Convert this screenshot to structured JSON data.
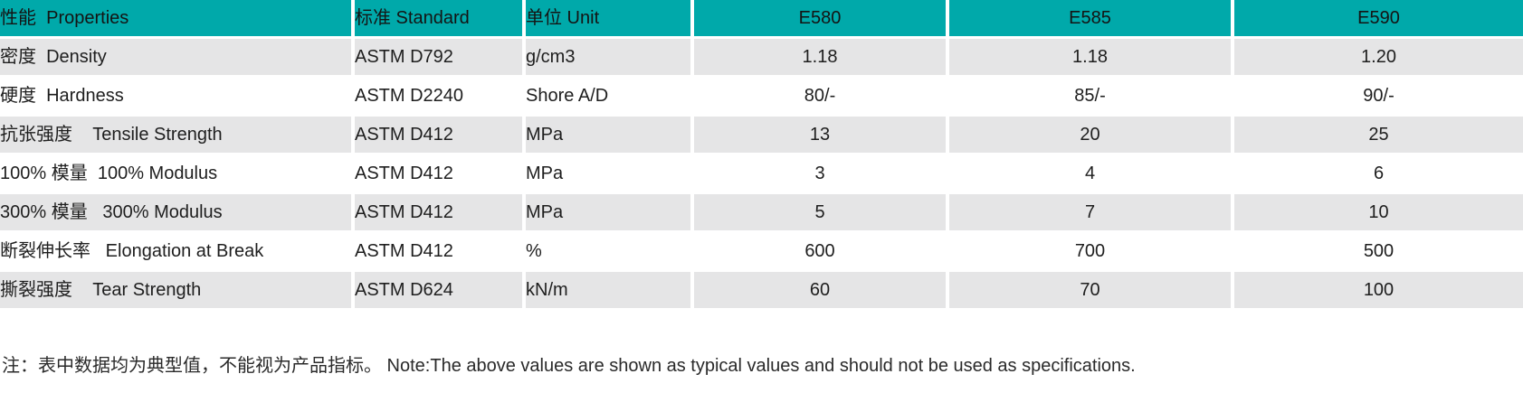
{
  "colors": {
    "header_bg": "#00a9aa",
    "alt_row_bg": "#e5e5e6",
    "row_bg": "#ffffff",
    "text": "#1e1e1e"
  },
  "table": {
    "columns": [
      "性能  Properties",
      "标准 Standard",
      "单位 Unit",
      "E580",
      "E585",
      "E590"
    ],
    "rows": [
      [
        "密度  Density",
        "ASTM D792",
        "g/cm3",
        "1.18",
        "1.18",
        "1.20"
      ],
      [
        "硬度  Hardness",
        "ASTM D2240",
        "Shore A/D",
        "80/-",
        "85/-",
        "90/-"
      ],
      [
        "抗张强度    Tensile Strength",
        "ASTM D412",
        "MPa",
        "13",
        "20",
        "25"
      ],
      [
        "100% 模量  100% Modulus",
        "ASTM D412",
        "MPa",
        "3",
        "4",
        "6"
      ],
      [
        "300% 模量   300% Modulus",
        "ASTM D412",
        "MPa",
        "5",
        "7",
        "10"
      ],
      [
        "断裂伸长率   Elongation at Break",
        "ASTM D412",
        "%",
        "600",
        "700",
        "500"
      ],
      [
        "撕裂强度    Tear Strength",
        "ASTM D624",
        "kN/m",
        "60",
        "70",
        "100"
      ]
    ]
  },
  "note": "注：表中数据均为典型值，不能视为产品指标。 Note:The above values are shown as typical values and should not be used as specifications."
}
